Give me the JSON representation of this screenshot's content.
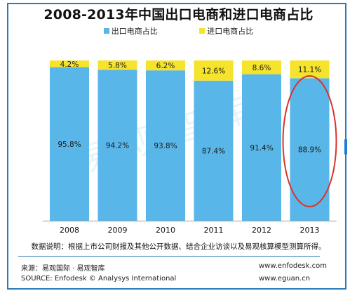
{
  "chart_data": {
    "type": "bar",
    "stacked": true,
    "title": "2008-2013年中国出口电商和进口电商占比",
    "categories": [
      "2008",
      "2009",
      "2010",
      "2011",
      "2012",
      "2013"
    ],
    "series": [
      {
        "name": "出口电商占比",
        "color": "#59b6e8",
        "values": [
          95.8,
          94.2,
          93.8,
          87.4,
          91.4,
          88.9
        ],
        "labels": [
          "95.8%",
          "94.2%",
          "93.8%",
          "87.4%",
          "91.4%",
          "88.9%"
        ]
      },
      {
        "name": "进口电商占比",
        "color": "#f5e32c",
        "values": [
          4.2,
          5.8,
          6.2,
          12.6,
          8.6,
          11.1
        ],
        "labels": [
          "4.2%",
          "5.8%",
          "6.2%",
          "12.6%",
          "8.6%",
          "11.1%"
        ]
      }
    ],
    "ylim": [
      0,
      100
    ],
    "grid": false,
    "legend_position": "top",
    "highlight": {
      "category": "2013",
      "color": "#d9342b"
    }
  },
  "watermark": "易观智库",
  "note": "数据说明：根据上市公司财报及其他公开数据、结合企业访谈以及易观核算模型测算所得。",
  "source_cn": "来源：易观国际 · 易观智库",
  "source_en": "SOURCE: Enfodesk © Analysys International",
  "site1": "www.enfodesk.com",
  "site2": "www.eguan.cn",
  "colors": {
    "frame": "#2a7ab8",
    "export": "#59b6e8",
    "import": "#f5e32c",
    "highlight": "#d9342b"
  }
}
